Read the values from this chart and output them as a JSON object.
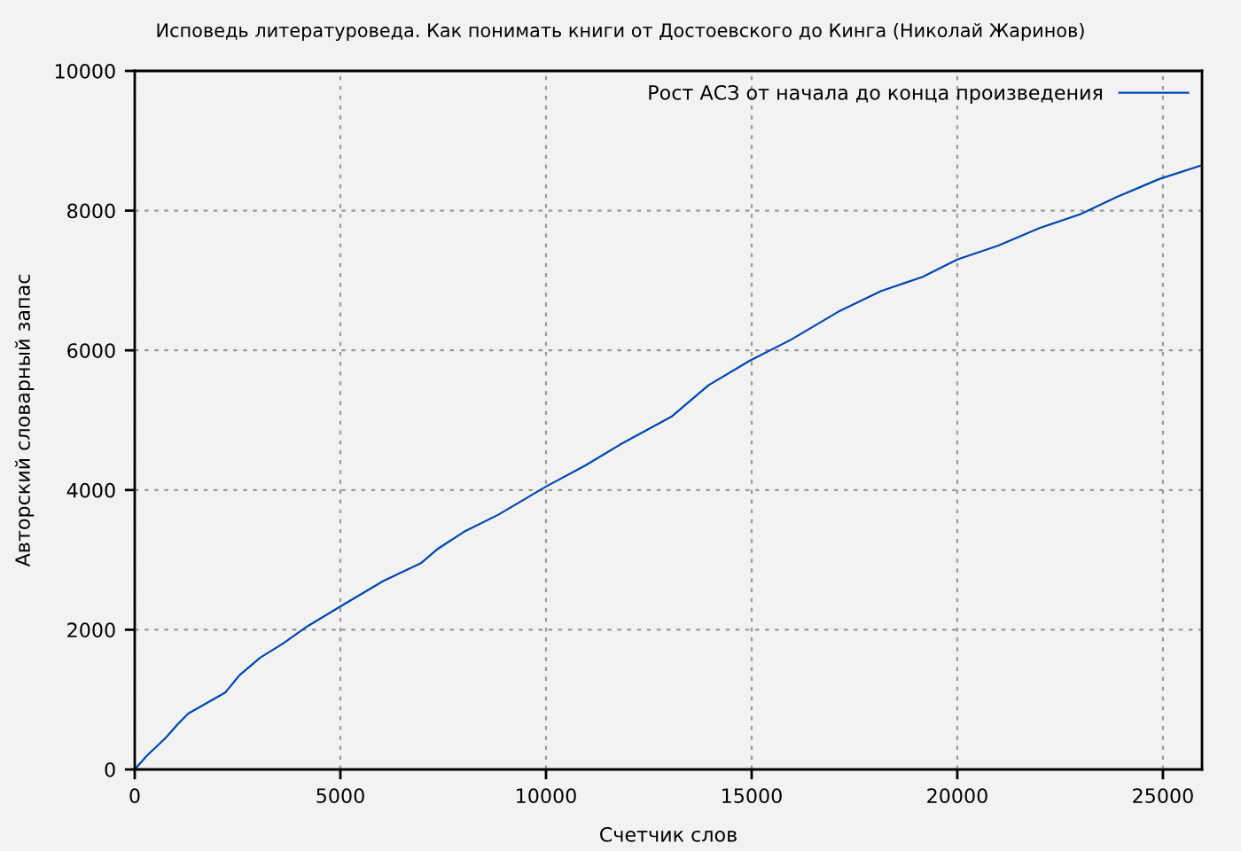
{
  "chart_data": {
    "type": "line",
    "title": "Исповедь литературоведа. Как понимать книги от Достоевского до Кинга (Николай Жаринов)",
    "xlabel": "Счетчик слов",
    "ylabel": "Авторский словарный запас",
    "series": [
      {
        "name": "Рост АСЗ от начала до конца произведения",
        "color": "#0047ab",
        "x": [
          0,
          300,
          750,
          1050,
          1300,
          2200,
          2550,
          3050,
          3600,
          4200,
          5050,
          6050,
          6950,
          7350,
          8000,
          8850,
          10000,
          10950,
          11800,
          13050,
          13950,
          14950,
          15950,
          17100,
          18150,
          19150,
          20000,
          21000,
          22000,
          23000,
          23900,
          24900,
          25950
        ],
        "values": [
          0,
          200,
          450,
          650,
          800,
          1100,
          1350,
          1600,
          1800,
          2050,
          2350,
          2700,
          2950,
          3150,
          3400,
          3650,
          4050,
          4350,
          4650,
          5050,
          5500,
          5850,
          6150,
          6550,
          6850,
          7050,
          7300,
          7500,
          7750,
          7950,
          8200,
          8450,
          8650
        ]
      }
    ],
    "xlim": [
      0,
      25950
    ],
    "ylim": [
      0,
      10000
    ],
    "xticks": [
      0,
      5000,
      10000,
      15000,
      20000,
      25000
    ],
    "yticks": [
      0,
      2000,
      4000,
      6000,
      8000,
      10000
    ],
    "grid": true,
    "legend": "top right",
    "marker": "none",
    "line_style": "solid"
  }
}
